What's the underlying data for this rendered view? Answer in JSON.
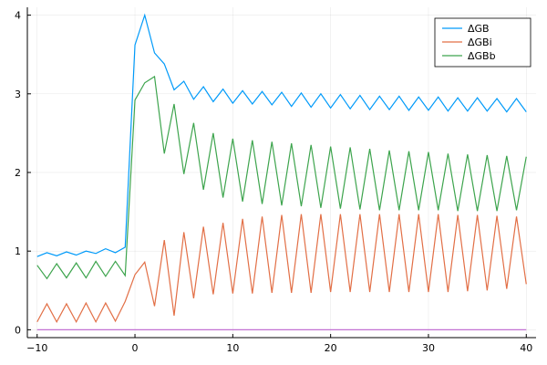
{
  "chart_data": {
    "type": "line",
    "title": "",
    "xlabel": "",
    "ylabel": "",
    "xlim": [
      -11,
      41
    ],
    "ylim": [
      -0.1,
      4.1
    ],
    "xticks": [
      -10,
      0,
      10,
      20,
      30,
      40
    ],
    "yticks": [
      0,
      1,
      2,
      3,
      4
    ],
    "xtick_labels": [
      "−10",
      "0",
      "10",
      "20",
      "30",
      "40"
    ],
    "ytick_labels": [
      "0",
      "1",
      "2",
      "3",
      "4"
    ],
    "grid": true,
    "legend_position": "top-right",
    "x": [
      -10,
      -9,
      -8,
      -7,
      -6,
      -5,
      -4,
      -3,
      -2,
      -1,
      0,
      1,
      2,
      3,
      4,
      5,
      6,
      7,
      8,
      9,
      10,
      11,
      12,
      13,
      14,
      15,
      16,
      17,
      18,
      19,
      20,
      21,
      22,
      23,
      24,
      25,
      26,
      27,
      28,
      29,
      30,
      31,
      32,
      33,
      34,
      35,
      36,
      37,
      38,
      39,
      40
    ],
    "series": [
      {
        "name": "ΔGB",
        "color": "#009AF9",
        "values": [
          0.93,
          0.98,
          0.94,
          0.99,
          0.95,
          1.0,
          0.97,
          1.03,
          0.98,
          1.05,
          3.62,
          4.0,
          3.52,
          3.38,
          3.05,
          3.16,
          2.93,
          3.09,
          2.9,
          3.06,
          2.88,
          3.04,
          2.87,
          3.03,
          2.86,
          3.02,
          2.84,
          3.01,
          2.83,
          3.0,
          2.82,
          2.99,
          2.81,
          2.98,
          2.8,
          2.97,
          2.8,
          2.97,
          2.79,
          2.96,
          2.79,
          2.96,
          2.78,
          2.95,
          2.78,
          2.95,
          2.78,
          2.94,
          2.77,
          2.94,
          2.77
        ]
      },
      {
        "name": "ΔGBi",
        "color": "#E26F46",
        "values": [
          0.1,
          0.33,
          0.1,
          0.33,
          0.1,
          0.34,
          0.1,
          0.34,
          0.11,
          0.36,
          0.7,
          0.86,
          0.3,
          1.14,
          0.18,
          1.24,
          0.4,
          1.31,
          0.45,
          1.36,
          0.46,
          1.41,
          0.46,
          1.44,
          0.47,
          1.46,
          0.47,
          1.47,
          0.47,
          1.47,
          0.48,
          1.47,
          0.48,
          1.47,
          0.48,
          1.47,
          0.48,
          1.47,
          0.48,
          1.47,
          0.48,
          1.47,
          0.48,
          1.46,
          0.49,
          1.46,
          0.5,
          1.45,
          0.52,
          1.44,
          0.58
        ]
      },
      {
        "name": "ΔGBb",
        "color": "#3DA44D",
        "values": [
          0.82,
          0.65,
          0.84,
          0.66,
          0.85,
          0.66,
          0.87,
          0.68,
          0.87,
          0.69,
          2.92,
          3.14,
          3.22,
          2.24,
          2.87,
          1.98,
          2.63,
          1.78,
          2.5,
          1.68,
          2.43,
          1.63,
          2.41,
          1.6,
          2.39,
          1.58,
          2.37,
          1.57,
          2.35,
          1.55,
          2.33,
          1.54,
          2.32,
          1.53,
          2.3,
          1.52,
          2.28,
          1.52,
          2.27,
          1.52,
          2.26,
          1.52,
          2.24,
          1.51,
          2.23,
          1.51,
          2.22,
          1.51,
          2.21,
          1.52,
          2.2
        ]
      },
      {
        "name": "",
        "color": "#C271D2",
        "values": [
          0,
          0,
          0,
          0,
          0,
          0,
          0,
          0,
          0,
          0,
          0,
          0,
          0,
          0,
          0,
          0,
          0,
          0,
          0,
          0,
          0,
          0,
          0,
          0,
          0,
          0,
          0,
          0,
          0,
          0,
          0,
          0,
          0,
          0,
          0,
          0,
          0,
          0,
          0,
          0,
          0,
          0,
          0,
          0,
          0,
          0,
          0,
          0,
          0,
          0,
          0
        ]
      }
    ]
  }
}
